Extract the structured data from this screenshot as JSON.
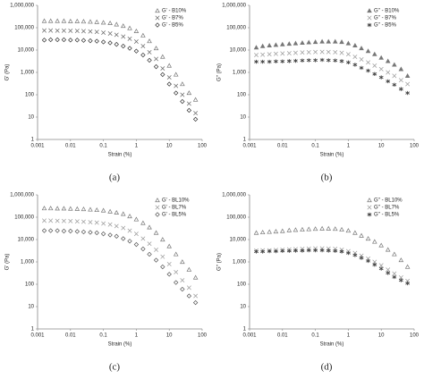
{
  "chart_data": [
    {
      "type": "scatter",
      "caption": "(a)",
      "xlabel": "Strain (%)",
      "ylabel": "G' (Pa)",
      "xscale": "log",
      "yscale": "log",
      "xlim": [
        0.001,
        100
      ],
      "ylim": [
        1,
        1000000
      ],
      "xticks": [
        0.001,
        0.01,
        0.1,
        1,
        10,
        100
      ],
      "yticks": [
        1,
        10,
        100,
        {
          "value": 1000,
          "label": "1,000"
        },
        {
          "value": 10000,
          "label": "10,000"
        },
        {
          "value": 100000,
          "label": "100,000"
        },
        {
          "value": 1000000,
          "label": "1,000,000"
        }
      ],
      "legend": "top-right",
      "x": [
        0.0016,
        0.0025,
        0.004,
        0.0063,
        0.01,
        0.016,
        0.025,
        0.04,
        0.063,
        0.1,
        0.16,
        0.25,
        0.4,
        0.63,
        1,
        1.6,
        2.5,
        4,
        6.3,
        10,
        16,
        25,
        40,
        63
      ],
      "series": [
        {
          "name": "G' - B10%",
          "color": "#777",
          "marker": "triangle",
          "values": [
            200000,
            200000,
            200000,
            200000,
            195000,
            195000,
            190000,
            185000,
            180000,
            170000,
            160000,
            140000,
            120000,
            95000,
            70000,
            45000,
            25000,
            12000,
            5000,
            2000,
            800,
            300,
            120,
            60
          ]
        },
        {
          "name": "G' - B7%",
          "color": "#666",
          "marker": "cross",
          "values": [
            75000,
            75000,
            74000,
            74000,
            73000,
            72000,
            70000,
            68000,
            65000,
            60000,
            55000,
            48000,
            40000,
            32000,
            24000,
            15000,
            8000,
            4000,
            1500,
            600,
            250,
            100,
            40,
            15
          ]
        },
        {
          "name": "G' - B5%",
          "color": "#333",
          "marker": "diamond",
          "values": [
            28000,
            29000,
            29000,
            29000,
            28000,
            28000,
            27000,
            26000,
            25000,
            23000,
            21000,
            18000,
            15000,
            12000,
            9000,
            6000,
            3500,
            1800,
            800,
            300,
            120,
            50,
            20,
            8
          ]
        }
      ]
    },
    {
      "type": "scatter",
      "caption": "(b)",
      "xlabel": "Strain (%)",
      "ylabel": "G'' (Pa)",
      "xscale": "log",
      "yscale": "log",
      "xlim": [
        0.001,
        100
      ],
      "ylim": [
        1,
        1000000
      ],
      "xticks": [
        0.001,
        0.01,
        0.1,
        1,
        10,
        100
      ],
      "yticks": [
        1,
        10,
        100,
        {
          "value": 1000,
          "label": "1,000"
        },
        {
          "value": 10000,
          "label": "10,000"
        },
        {
          "value": 100000,
          "label": "100,000"
        },
        {
          "value": 1000000,
          "label": "1,000,000"
        }
      ],
      "legend": "top-right",
      "x": [
        0.0016,
        0.0025,
        0.004,
        0.0063,
        0.01,
        0.016,
        0.025,
        0.04,
        0.063,
        0.1,
        0.16,
        0.25,
        0.4,
        0.63,
        1,
        1.6,
        2.5,
        4,
        6.3,
        10,
        16,
        25,
        40,
        63
      ],
      "series": [
        {
          "name": "G'' - B10%",
          "color": "#777",
          "marker": "triangle-filled",
          "values": [
            13000,
            15000,
            16000,
            17000,
            18000,
            19000,
            20000,
            21000,
            22000,
            23000,
            24000,
            24000,
            24000,
            23000,
            20000,
            16000,
            12000,
            9000,
            6500,
            4500,
            3200,
            2200,
            1400,
            700
          ]
        },
        {
          "name": "G'' - B7%",
          "color": "#999",
          "marker": "cross",
          "values": [
            6000,
            6200,
            6500,
            6800,
            7000,
            7200,
            7500,
            7800,
            8000,
            8200,
            8300,
            8200,
            8000,
            7500,
            6500,
            5000,
            3800,
            2800,
            2000,
            1400,
            1000,
            700,
            450,
            300
          ]
        },
        {
          "name": "G'' - B5%",
          "color": "#444",
          "marker": "star",
          "values": [
            3000,
            3000,
            3000,
            3100,
            3100,
            3200,
            3300,
            3400,
            3500,
            3500,
            3600,
            3500,
            3400,
            3200,
            2800,
            2200,
            1600,
            1200,
            850,
            600,
            400,
            280,
            180,
            120
          ]
        }
      ]
    },
    {
      "type": "scatter",
      "caption": "(c)",
      "xlabel": "Strain (%)",
      "ylabel": "G' (Pa)",
      "xscale": "log",
      "yscale": "log",
      "xlim": [
        0.001,
        100
      ],
      "ylim": [
        1,
        1000000
      ],
      "xticks": [
        0.001,
        0.01,
        0.1,
        1,
        10,
        100
      ],
      "yticks": [
        1,
        10,
        100,
        {
          "value": 1000,
          "label": "1,000"
        },
        {
          "value": 10000,
          "label": "10,000"
        },
        {
          "value": 100000,
          "label": "100,000"
        },
        {
          "value": 1000000,
          "label": "1,000,000"
        }
      ],
      "legend": "top-right",
      "x": [
        0.0016,
        0.0025,
        0.004,
        0.0063,
        0.01,
        0.016,
        0.025,
        0.04,
        0.063,
        0.1,
        0.16,
        0.25,
        0.4,
        0.63,
        1,
        1.6,
        2.5,
        4,
        6.3,
        10,
        16,
        25,
        40,
        63
      ],
      "series": [
        {
          "name": "G' - BL10%",
          "color": "#777",
          "marker": "triangle",
          "values": [
            250000,
            250000,
            245000,
            245000,
            240000,
            235000,
            230000,
            220000,
            210000,
            200000,
            180000,
            160000,
            140000,
            110000,
            80000,
            55000,
            35000,
            20000,
            10000,
            5000,
            2200,
            1000,
            450,
            200
          ]
        },
        {
          "name": "G' - BL7%",
          "color": "#999",
          "marker": "cross",
          "values": [
            70000,
            70000,
            69000,
            68000,
            67000,
            65000,
            63000,
            60000,
            57000,
            52000,
            47000,
            40000,
            33000,
            25000,
            18000,
            11000,
            6500,
            3500,
            1700,
            800,
            350,
            150,
            70,
            30
          ]
        },
        {
          "name": "G' - BL5%",
          "color": "#555",
          "marker": "diamond",
          "values": [
            25000,
            25000,
            25000,
            24000,
            24000,
            23000,
            22000,
            21000,
            20000,
            18000,
            16000,
            14000,
            11000,
            8500,
            6000,
            3800,
            2200,
            1200,
            600,
            280,
            120,
            60,
            30,
            15
          ]
        }
      ]
    },
    {
      "type": "scatter",
      "caption": "(d)",
      "xlabel": "Strain (%)",
      "ylabel": "G'' (Pa)",
      "xscale": "log",
      "yscale": "log",
      "xlim": [
        0.001,
        100
      ],
      "ylim": [
        1,
        1000000
      ],
      "xticks": [
        0.001,
        0.01,
        0.1,
        1,
        10,
        100
      ],
      "yticks": [
        1,
        10,
        100,
        {
          "value": 1000,
          "label": "1,000"
        },
        {
          "value": 10000,
          "label": "10,000"
        },
        {
          "value": 100000,
          "label": "100,000"
        },
        {
          "value": 1000000,
          "label": "1,000,000"
        }
      ],
      "legend": "top-right",
      "x": [
        0.0016,
        0.0025,
        0.004,
        0.0063,
        0.01,
        0.016,
        0.025,
        0.04,
        0.063,
        0.1,
        0.16,
        0.25,
        0.4,
        0.63,
        1,
        1.6,
        2.5,
        4,
        6.3,
        10,
        16,
        25,
        40,
        63
      ],
      "series": [
        {
          "name": "G'' - BL10%",
          "color": "#777",
          "marker": "triangle",
          "values": [
            20000,
            21000,
            22000,
            23000,
            24000,
            26000,
            27000,
            28000,
            29000,
            30000,
            31000,
            31000,
            30000,
            28000,
            25000,
            20000,
            15000,
            11000,
            8000,
            5500,
            3500,
            2200,
            1200,
            600
          ]
        },
        {
          "name": "G'' - BL7%",
          "color": "#999",
          "marker": "cross",
          "values": [
            3200,
            3300,
            3300,
            3400,
            3500,
            3600,
            3700,
            3800,
            3900,
            4000,
            4000,
            3900,
            3800,
            3500,
            3000,
            2500,
            1900,
            1400,
            1000,
            700,
            450,
            300,
            200,
            140
          ]
        },
        {
          "name": "G'' - BL5%",
          "color": "#444",
          "marker": "star",
          "values": [
            2900,
            2900,
            3000,
            3000,
            3100,
            3100,
            3200,
            3200,
            3300,
            3300,
            3300,
            3200,
            3100,
            2900,
            2500,
            2000,
            1500,
            1100,
            750,
            500,
            320,
            210,
            150,
            110
          ]
        }
      ]
    }
  ]
}
